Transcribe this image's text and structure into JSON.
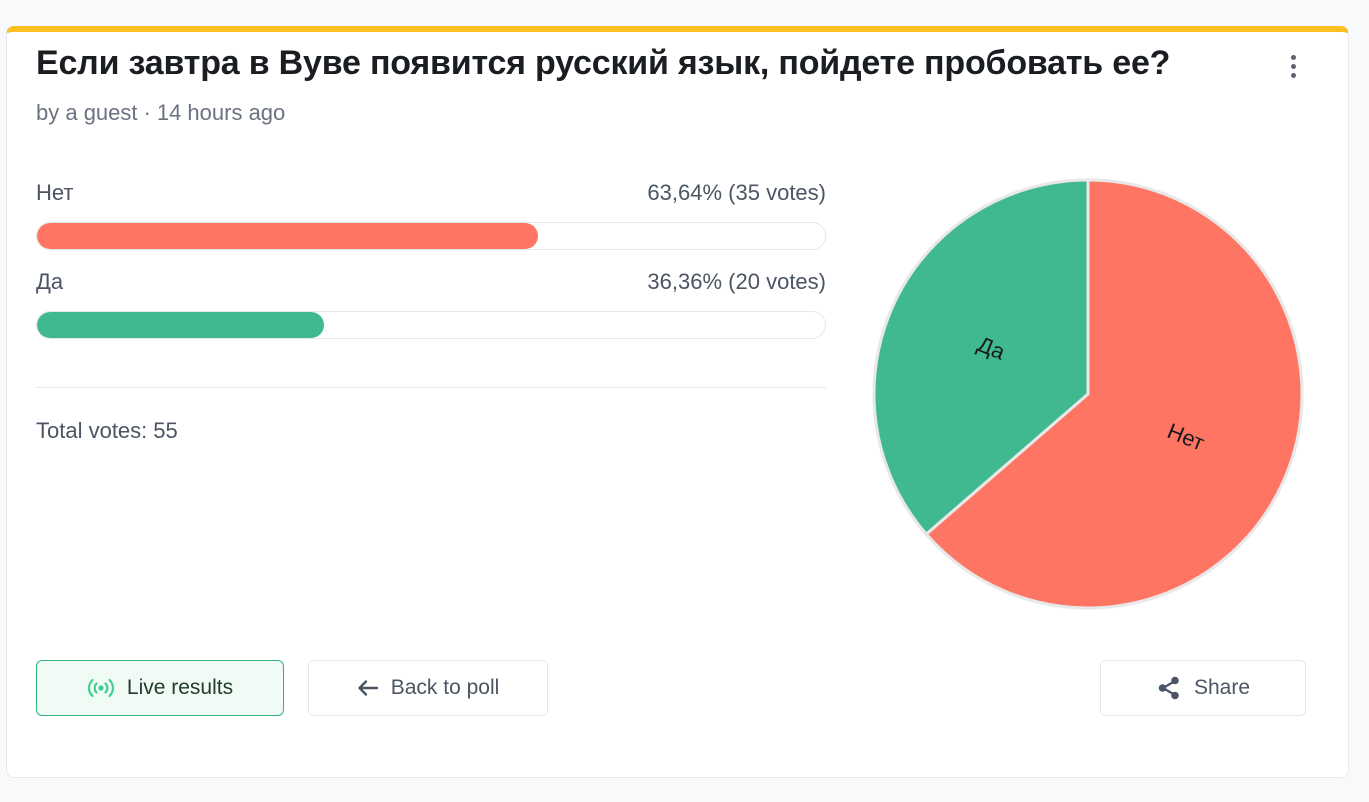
{
  "poll": {
    "title": "Если завтра в Вуве появится русский язык, пойдете пробовать ее?",
    "author": "by a guest",
    "separator": "·",
    "time": "14 hours ago"
  },
  "options": [
    {
      "label": "Нет",
      "percent_text": "63,64%",
      "votes_text": "(35 votes)",
      "fraction": 0.6364,
      "color": "#ff7563"
    },
    {
      "label": "Да",
      "percent_text": "36,36%",
      "votes_text": "(20 votes)",
      "fraction": 0.3636,
      "color": "#40b991"
    }
  ],
  "total": {
    "label": "Total votes:",
    "value": "55"
  },
  "chart_data": {
    "type": "pie",
    "categories": [
      "Нет",
      "Да"
    ],
    "values": [
      35,
      20
    ],
    "colors": [
      "#ff7563",
      "#40b991"
    ],
    "title": ""
  },
  "buttons": {
    "live": "Live results",
    "back": "Back to poll",
    "share": "Share"
  },
  "icons": {
    "menu": "kebab-menu-icon",
    "live": "broadcast-icon",
    "back": "arrow-left-icon",
    "share": "share-icon"
  },
  "colors": {
    "accent_top": "#fbbf24",
    "live_green": "#34b37a"
  }
}
